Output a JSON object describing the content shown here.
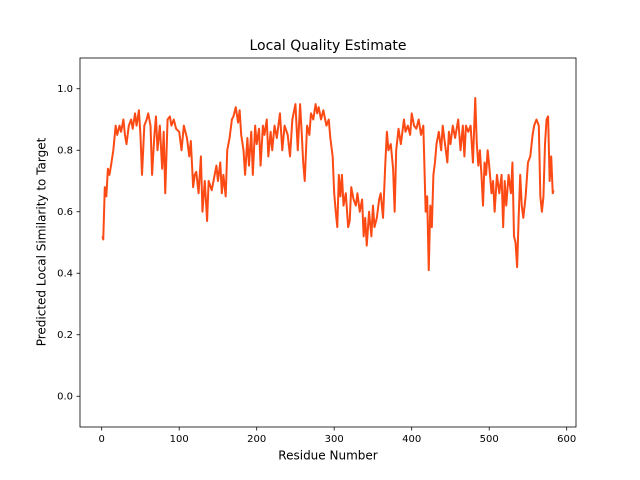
{
  "chart_data": {
    "type": "line",
    "title": "Local Quality Estimate",
    "xlabel": "Residue Number",
    "ylabel": "Predicted Local Similarity to Target",
    "xlim": [
      -28,
      612
    ],
    "ylim": [
      -0.1,
      1.1
    ],
    "xticks": [
      0,
      100,
      200,
      300,
      400,
      500,
      600
    ],
    "yticks": [
      {
        "value": 0,
        "label": "0.0"
      },
      0.2,
      0.4,
      0.6,
      0.8,
      {
        "value": 1,
        "label": "1.0"
      }
    ],
    "series": [
      {
        "color": "#fc4a14",
        "x": [
          1,
          2,
          4,
          6,
          8,
          10,
          12,
          15,
          18,
          20,
          23,
          25,
          28,
          30,
          32,
          35,
          38,
          40,
          43,
          45,
          48,
          50,
          52,
          55,
          58,
          60,
          63,
          65,
          68,
          70,
          72,
          75,
          78,
          80,
          82,
          85,
          88,
          90,
          93,
          96,
          100,
          103,
          106,
          110,
          113,
          115,
          118,
          120,
          122,
          125,
          128,
          130,
          133,
          136,
          138,
          142,
          145,
          148,
          150,
          153,
          155,
          157,
          160,
          162,
          165,
          168,
          170,
          173,
          176,
          178,
          180,
          183,
          185,
          188,
          190,
          193,
          195,
          198,
          200,
          203,
          205,
          208,
          210,
          213,
          215,
          218,
          220,
          223,
          226,
          230,
          233,
          236,
          240,
          243,
          246,
          250,
          253,
          256,
          258,
          260,
          262,
          265,
          268,
          270,
          273,
          276,
          278,
          280,
          283,
          286,
          290,
          293,
          295,
          298,
          300,
          302,
          304,
          306,
          308,
          310,
          312,
          315,
          318,
          320,
          322,
          325,
          328,
          330,
          333,
          336,
          338,
          340,
          342,
          345,
          348,
          350,
          352,
          355,
          358,
          360,
          363,
          366,
          368,
          370,
          373,
          376,
          378,
          380,
          383,
          386,
          390,
          392,
          395,
          398,
          400,
          403,
          406,
          409,
          412,
          415,
          418,
          420,
          422,
          424,
          426,
          428,
          430,
          432,
          435,
          438,
          440,
          443,
          446,
          448,
          450,
          453,
          456,
          460,
          463,
          466,
          468,
          470,
          473,
          476,
          479,
          482,
          484,
          486,
          488,
          490,
          492,
          494,
          496,
          498,
          500,
          503,
          505,
          507,
          510,
          513,
          516,
          518,
          520,
          522,
          525,
          528,
          530,
          532,
          534,
          536,
          538,
          540,
          542,
          544,
          547,
          550,
          553,
          556,
          558,
          561,
          564,
          566,
          568,
          570,
          572,
          574,
          576,
          578,
          580,
          582,
          583
        ],
        "values": [
          0.52,
          0.51,
          0.68,
          0.65,
          0.74,
          0.72,
          0.75,
          0.8,
          0.88,
          0.85,
          0.88,
          0.86,
          0.9,
          0.85,
          0.82,
          0.88,
          0.9,
          0.87,
          0.92,
          0.88,
          0.93,
          0.85,
          0.72,
          0.88,
          0.9,
          0.92,
          0.88,
          0.72,
          0.85,
          0.91,
          0.8,
          0.88,
          0.74,
          0.86,
          0.66,
          0.9,
          0.91,
          0.88,
          0.9,
          0.87,
          0.86,
          0.8,
          0.88,
          0.84,
          0.78,
          0.83,
          0.68,
          0.72,
          0.73,
          0.66,
          0.78,
          0.6,
          0.7,
          0.57,
          0.7,
          0.67,
          0.71,
          0.75,
          0.7,
          0.76,
          0.66,
          0.72,
          0.65,
          0.8,
          0.84,
          0.9,
          0.91,
          0.94,
          0.89,
          0.93,
          0.85,
          0.8,
          0.72,
          0.84,
          0.75,
          0.86,
          0.72,
          0.88,
          0.82,
          0.87,
          0.75,
          0.88,
          0.85,
          0.9,
          0.78,
          0.86,
          0.8,
          0.88,
          0.84,
          0.92,
          0.8,
          0.88,
          0.85,
          0.78,
          0.9,
          0.95,
          0.8,
          0.95,
          0.86,
          0.76,
          0.7,
          0.88,
          0.85,
          0.92,
          0.9,
          0.95,
          0.92,
          0.94,
          0.9,
          0.93,
          0.88,
          0.9,
          0.84,
          0.78,
          0.66,
          0.6,
          0.55,
          0.72,
          0.65,
          0.72,
          0.62,
          0.66,
          0.55,
          0.57,
          0.68,
          0.64,
          0.62,
          0.66,
          0.6,
          0.64,
          0.52,
          0.58,
          0.49,
          0.6,
          0.52,
          0.62,
          0.55,
          0.58,
          0.64,
          0.66,
          0.58,
          0.76,
          0.86,
          0.8,
          0.82,
          0.74,
          0.6,
          0.8,
          0.87,
          0.82,
          0.9,
          0.86,
          0.88,
          0.85,
          0.92,
          0.88,
          0.87,
          0.9,
          0.85,
          0.88,
          0.6,
          0.65,
          0.41,
          0.62,
          0.55,
          0.72,
          0.76,
          0.82,
          0.86,
          0.8,
          0.88,
          0.82,
          0.76,
          0.86,
          0.82,
          0.88,
          0.84,
          0.9,
          0.8,
          0.88,
          0.78,
          0.88,
          0.86,
          0.88,
          0.76,
          0.97,
          0.82,
          0.75,
          0.8,
          0.72,
          0.62,
          0.76,
          0.72,
          0.8,
          0.75,
          0.66,
          0.7,
          0.6,
          0.72,
          0.66,
          0.72,
          0.55,
          0.7,
          0.62,
          0.72,
          0.66,
          0.76,
          0.52,
          0.5,
          0.42,
          0.58,
          0.72,
          0.62,
          0.58,
          0.65,
          0.76,
          0.78,
          0.85,
          0.88,
          0.9,
          0.88,
          0.65,
          0.6,
          0.65,
          0.82,
          0.9,
          0.91,
          0.7,
          0.78,
          0.66,
          0.67
        ]
      }
    ]
  }
}
